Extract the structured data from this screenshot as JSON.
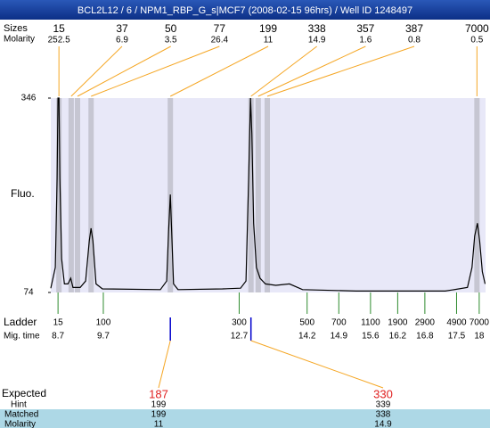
{
  "chart_data": {
    "type": "line",
    "title": "BCL2L12 / 6 / NPM1_RBP_G_s|MCF7 (2008-02-15 96hrs) / Well ID 1248497",
    "ylabel": "Fluo.",
    "ylim": [
      74,
      346
    ],
    "yticks": [
      74,
      346
    ],
    "xlim": [
      8.54,
      18.14
    ],
    "color": "#000000",
    "x": [
      8.54,
      8.64,
      8.68,
      8.7,
      8.72,
      8.74,
      8.78,
      8.84,
      8.92,
      8.98,
      9.03,
      9.19,
      9.31,
      9.39,
      9.43,
      9.47,
      9.54,
      9.68,
      10.96,
      11.1,
      11.14,
      11.18,
      11.21,
      11.25,
      11.35,
      12.33,
      12.73,
      12.85,
      12.91,
      12.95,
      12.98,
      13.02,
      13.08,
      13.16,
      13.28,
      13.51,
      13.81,
      14.1,
      15.28,
      17.25,
      17.74,
      17.84,
      17.9,
      17.96,
      18.01,
      18.07,
      18.13
    ],
    "values": [
      80,
      109,
      234,
      346,
      346,
      234,
      121,
      86,
      86,
      94,
      81,
      81,
      90,
      146,
      164,
      146,
      86,
      79,
      78,
      90,
      159,
      211,
      159,
      86,
      78,
      79,
      80,
      90,
      234,
      346,
      296,
      171,
      109,
      94,
      86,
      84,
      86,
      78,
      76,
      76,
      81,
      109,
      153,
      171,
      146,
      103,
      86
    ],
    "peak_size_label": "Sizes",
    "peak_molarity_label": "Molarity",
    "peaks": [
      {
        "x": 8.72,
        "size": 15,
        "molarity": 252.5
      },
      {
        "x": 8.99,
        "size": 37,
        "molarity": 6.9
      },
      {
        "x": 9.13,
        "size": 50,
        "molarity": 3.5
      },
      {
        "x": 9.43,
        "size": 77,
        "molarity": 26.4
      },
      {
        "x": 11.18,
        "size": 199,
        "molarity": 11
      },
      {
        "x": 12.96,
        "size": 338,
        "molarity": 14.9
      },
      {
        "x": 13.12,
        "size": 357,
        "molarity": 1.6
      },
      {
        "x": 13.32,
        "size": 387,
        "molarity": 0.8
      },
      {
        "x": 17.95,
        "size": 7000,
        "molarity": 0.5
      }
    ],
    "ladder": {
      "label": "Ladder",
      "time_label": "Mig. time",
      "sizes": [
        15,
        100,
        300,
        500,
        700,
        1100,
        1900,
        2900,
        4900,
        7000
      ],
      "times": [
        8.7,
        9.7,
        12.7,
        14.2,
        14.9,
        15.6,
        16.2,
        16.8,
        17.5,
        18
      ]
    },
    "expected": {
      "label": "Expected",
      "hint_label": "Hint",
      "matched_label": "Matched",
      "molarity_label": "Molarity",
      "items": [
        {
          "x": 11.18,
          "expected": 187,
          "hint": 199,
          "matched": 199,
          "molarity": 11
        },
        {
          "x": 12.96,
          "expected": 330,
          "hint": 339,
          "matched": 338,
          "molarity": 14.9
        }
      ]
    }
  }
}
